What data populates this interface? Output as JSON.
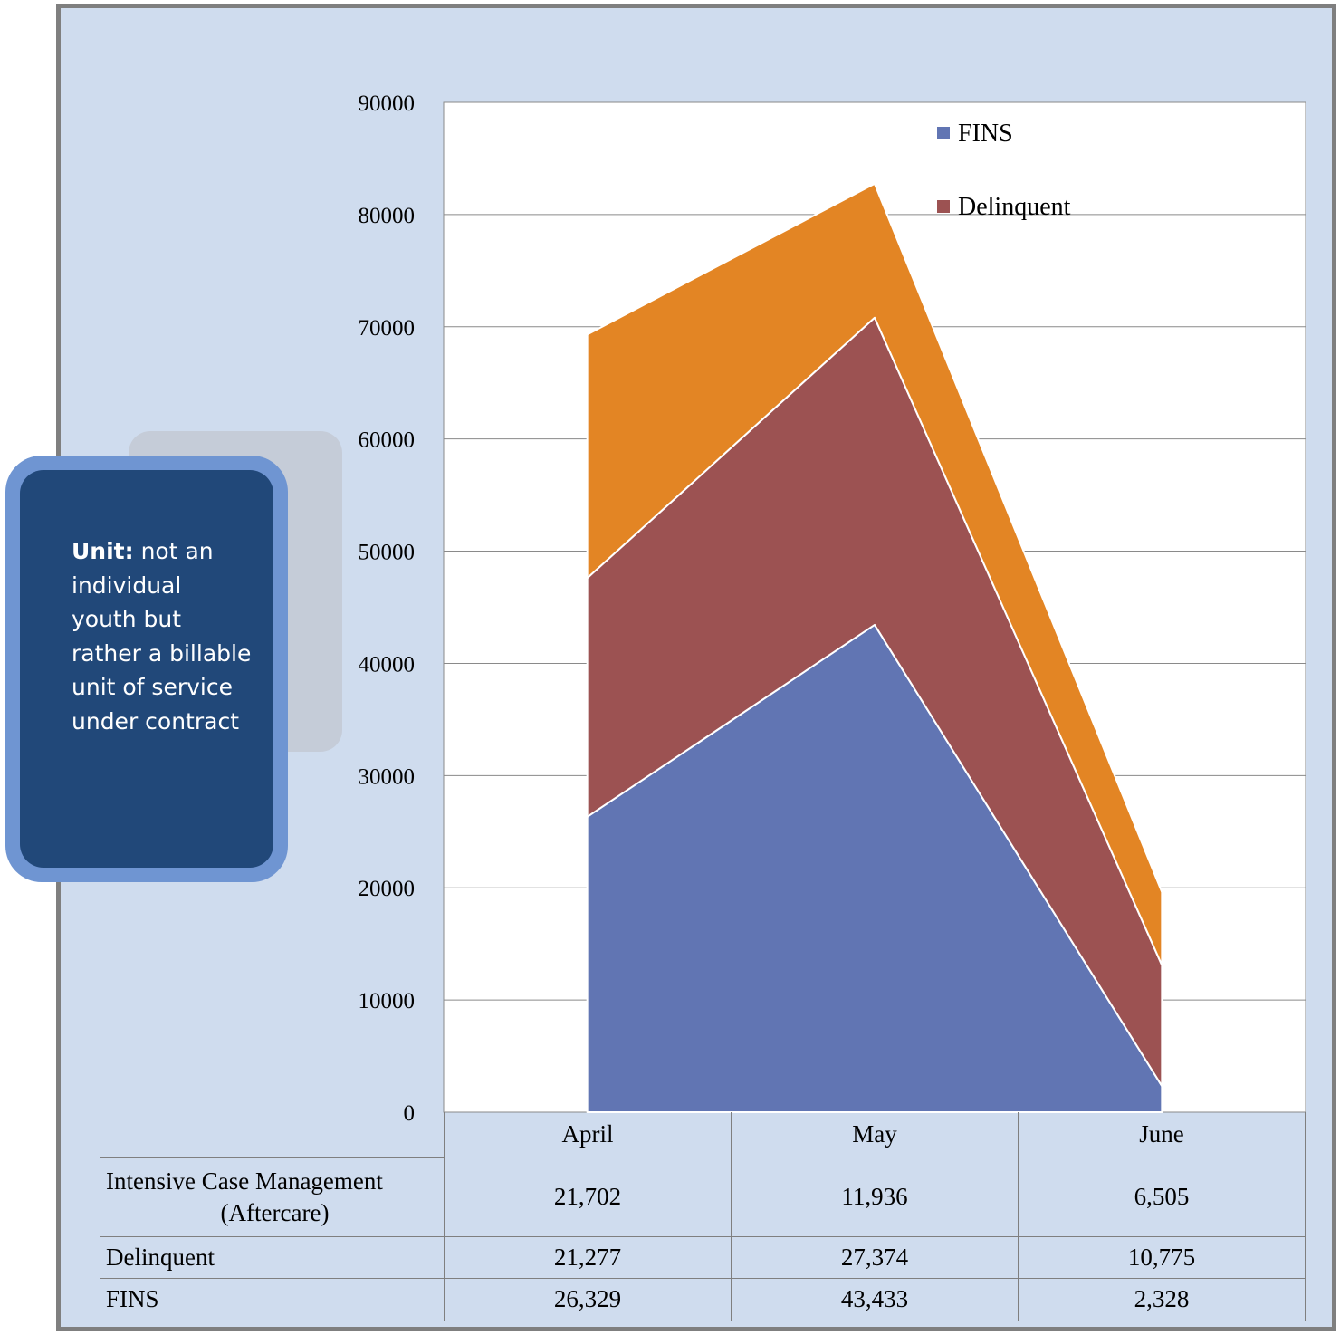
{
  "chart_data": {
    "type": "area",
    "stacked": true,
    "categories": [
      "April",
      "May",
      "June"
    ],
    "series": [
      {
        "name": "FINS",
        "values": [
          26329,
          43433,
          2328
        ],
        "color": "#6175b3"
      },
      {
        "name": "Delinquent",
        "values": [
          21277,
          27374,
          10775
        ],
        "color": "#9c5252"
      },
      {
        "name": "Intensive Case Management (Aftercare)",
        "values": [
          21702,
          11936,
          6505
        ],
        "color": "#e38524"
      }
    ],
    "ylim": [
      0,
      90000
    ],
    "yticks": [
      0,
      10000,
      20000,
      30000,
      40000,
      50000,
      60000,
      70000,
      80000,
      90000
    ],
    "grid": true,
    "legend_entries": [
      "FINS",
      "Delinquent"
    ],
    "legend_placement": "top-right",
    "data_table": {
      "rows": [
        {
          "label_lines": [
            "Intensive Case Management",
            "(Aftercare)"
          ],
          "values": [
            "21,702",
            "11,936",
            "6,505"
          ]
        },
        {
          "label_lines": [
            "Delinquent"
          ],
          "values": [
            "21,277",
            "27,374",
            "10,775"
          ]
        },
        {
          "label_lines": [
            "FINS"
          ],
          "values": [
            "26,329",
            "43,433",
            "2,328"
          ]
        }
      ]
    }
  },
  "callout": {
    "bold": "Unit:",
    "text": " not an individual youth but rather a billable unit of service under contract"
  }
}
